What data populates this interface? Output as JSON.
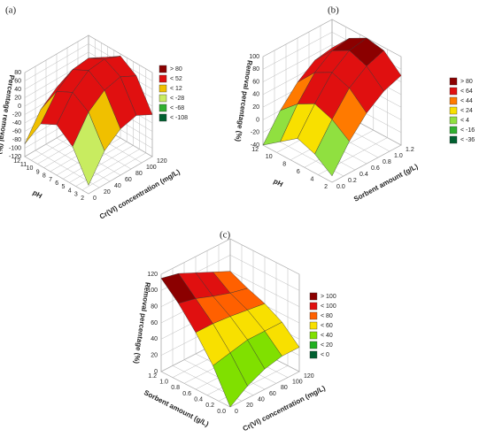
{
  "chart_data": [
    {
      "type": "surface3d",
      "panel": "(a)",
      "x_label": "pH",
      "y_label": "Cr(VI) concentration (mg/L)",
      "z_label": "Percentage removal (%)",
      "xlim": [
        12,
        2
      ],
      "ylim": [
        120,
        0
      ],
      "zlim": [
        -120,
        80
      ],
      "xticks": [
        12,
        11,
        10,
        9,
        8,
        7,
        6,
        5,
        4,
        3,
        2
      ],
      "yticks": [
        120,
        100,
        80,
        60,
        40,
        20,
        0
      ],
      "zticks": [
        -120,
        -100,
        -80,
        -60,
        -40,
        -20,
        0,
        20,
        40,
        60,
        80
      ],
      "x": [
        2,
        4.5,
        7,
        9.5,
        12
      ],
      "y": [
        0,
        30,
        60,
        90,
        120
      ],
      "z": [
        [
          -100,
          -40,
          -10,
          0,
          -20
        ],
        [
          -30,
          30,
          60,
          70,
          50
        ],
        [
          0,
          55,
          85,
          90,
          75
        ],
        [
          -20,
          35,
          65,
          70,
          50
        ],
        [
          -90,
          -30,
          0,
          10,
          -10
        ]
      ],
      "legend": [
        {
          "value": 80,
          "label": "> 80",
          "color": "#8b0000"
        },
        {
          "value": 52,
          "label": "< 52",
          "color": "#e01010"
        },
        {
          "value": 12,
          "label": "< 12",
          "color": "#f0c000"
        },
        {
          "value": -28,
          "label": "< -28",
          "color": "#c8ec60"
        },
        {
          "value": -68,
          "label": "< -68",
          "color": "#30b030"
        },
        {
          "value": -108,
          "label": "< -108",
          "color": "#006030"
        }
      ]
    },
    {
      "type": "surface3d",
      "panel": "(b)",
      "x_label": "pH",
      "y_label": "Sorbent amount (g/L)",
      "z_label": "Removal percentage (%)",
      "xlim": [
        12,
        2
      ],
      "ylim": [
        1.2,
        0
      ],
      "zlim": [
        -40,
        100
      ],
      "xticks": [
        12,
        10,
        8,
        6,
        4,
        2
      ],
      "yticks": [
        {
          "value": 1.2,
          "label": "1.2"
        },
        {
          "value": 1,
          "label": "1.0"
        },
        {
          "value": 0.8,
          "label": "0.8"
        },
        {
          "value": 0.6,
          "label": "0.6"
        },
        {
          "value": 0.4,
          "label": "0.4"
        },
        {
          "value": 0.2,
          "label": "0.2"
        },
        {
          "value": 0,
          "label": "0.0"
        }
      ],
      "zticks": [
        -40,
        -20,
        0,
        20,
        40,
        60,
        80,
        100
      ],
      "x": [
        2,
        4.5,
        7,
        9.5,
        12
      ],
      "y": [
        0,
        0.3,
        0.6,
        0.9,
        1.2
      ],
      "z": [
        [
          -30,
          10,
          40,
          60,
          70
        ],
        [
          -10,
          30,
          65,
          85,
          95
        ],
        [
          0,
          40,
          75,
          95,
          100
        ],
        [
          -20,
          25,
          60,
          80,
          85
        ],
        [
          -40,
          0,
          30,
          50,
          55
        ]
      ],
      "legend": [
        {
          "value": 80,
          "label": "> 80",
          "color": "#8b0000"
        },
        {
          "value": 64,
          "label": "< 64",
          "color": "#e01010"
        },
        {
          "value": 44,
          "label": "< 44",
          "color": "#ff7a00"
        },
        {
          "value": 24,
          "label": "< 24",
          "color": "#f8e000"
        },
        {
          "value": 4,
          "label": "< 4",
          "color": "#90e040"
        },
        {
          "value": -16,
          "label": "< -16",
          "color": "#30b030"
        },
        {
          "value": -36,
          "label": "< -36",
          "color": "#006030"
        }
      ]
    },
    {
      "type": "surface3d",
      "panel": "(c)",
      "x_label": "Sorbent amount (g/L)",
      "y_label": "Cr(VI) concentration (mg/L)",
      "z_label": "Removal percentage (%)",
      "xlim": [
        1.2,
        0
      ],
      "ylim": [
        120,
        0
      ],
      "zlim": [
        0,
        120
      ],
      "xticks": [
        {
          "value": 1.2,
          "label": "1.2"
        },
        {
          "value": 1,
          "label": "1.0"
        },
        {
          "value": 0.8,
          "label": "0.8"
        },
        {
          "value": 0.6,
          "label": "0.6"
        },
        {
          "value": 0.4,
          "label": "0.4"
        },
        {
          "value": 0.2,
          "label": "0.2"
        },
        {
          "value": 0,
          "label": "0.0"
        }
      ],
      "yticks": [
        120,
        100,
        80,
        60,
        40,
        20,
        0
      ],
      "zticks": [
        0,
        20,
        40,
        60,
        80,
        100,
        120
      ],
      "x": [
        0,
        0.3,
        0.6,
        0.9,
        1.2
      ],
      "y": [
        0,
        30,
        60,
        90,
        120
      ],
      "z": [
        [
          0,
          15,
          25,
          30,
          30
        ],
        [
          40,
          45,
          50,
          50,
          50
        ],
        [
          70,
          70,
          68,
          65,
          62
        ],
        [
          95,
          90,
          82,
          75,
          70
        ],
        [
          115,
          110,
          100,
          90,
          80
        ]
      ],
      "legend": [
        {
          "value": 100,
          "label": "> 100",
          "color": "#8b0000"
        },
        {
          "value": 100,
          "label": "< 100",
          "color": "#e01010"
        },
        {
          "value": 80,
          "label": "< 80",
          "color": "#ff6000"
        },
        {
          "value": 60,
          "label": "< 60",
          "color": "#f8e000"
        },
        {
          "value": 40,
          "label": "< 40",
          "color": "#80e000"
        },
        {
          "value": 20,
          "label": "< 20",
          "color": "#20b020"
        },
        {
          "value": 0,
          "label": "< 0",
          "color": "#006030"
        }
      ]
    }
  ]
}
